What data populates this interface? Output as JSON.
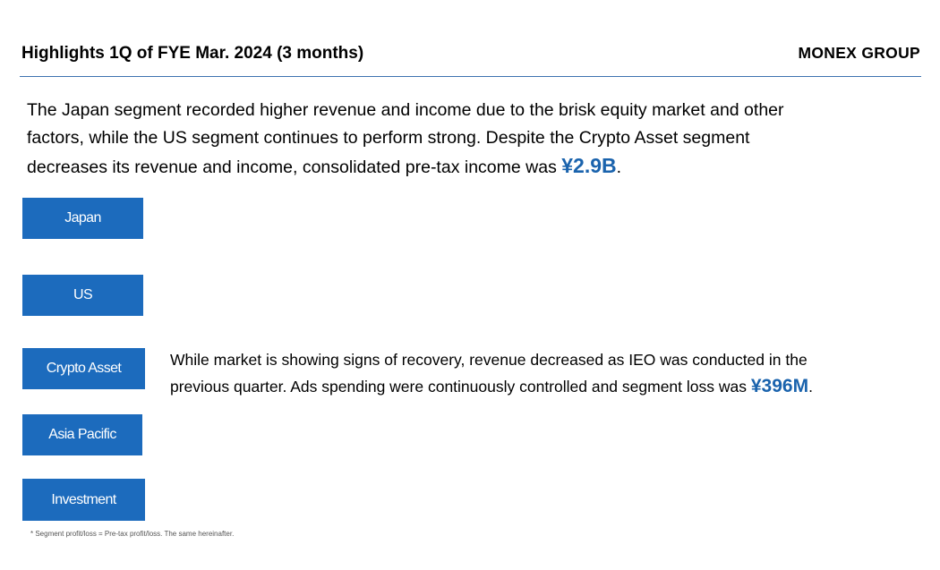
{
  "header": {
    "title": "Highlights 1Q of FYE Mar. 2024 (3 months)",
    "brand": "MONEX GROUP",
    "rule_color": "#3d73b0"
  },
  "summary": {
    "line1": "The Japan segment recorded higher revenue and income due to the brisk equity market and other",
    "line2": "factors, while the US segment continues to perform strong. Despite the Crypto Asset segment",
    "line3_prefix": "decreases its revenue and income, consolidated pre-tax income was ",
    "line3_value": "¥2.9B",
    "line3_suffix": "."
  },
  "segments": [
    {
      "label": "Japan"
    },
    {
      "label": "US"
    },
    {
      "label": "Crypto Asset"
    },
    {
      "label": "Asia Pacific"
    },
    {
      "label": "Investment"
    }
  ],
  "crypto_detail": {
    "line1": "While market is showing signs of recovery, revenue decreased as IEO was conducted in the",
    "line2_prefix": "previous quarter. Ads spending were continuously controlled and segment loss was ",
    "line2_value": "¥396M",
    "line2_suffix": "."
  },
  "footnote": "* Segment profit/loss = Pre-tax profit/loss. The same hereinafter.",
  "colors": {
    "segment_button": "#1c6bbd",
    "highlight": "#1a63ad"
  }
}
